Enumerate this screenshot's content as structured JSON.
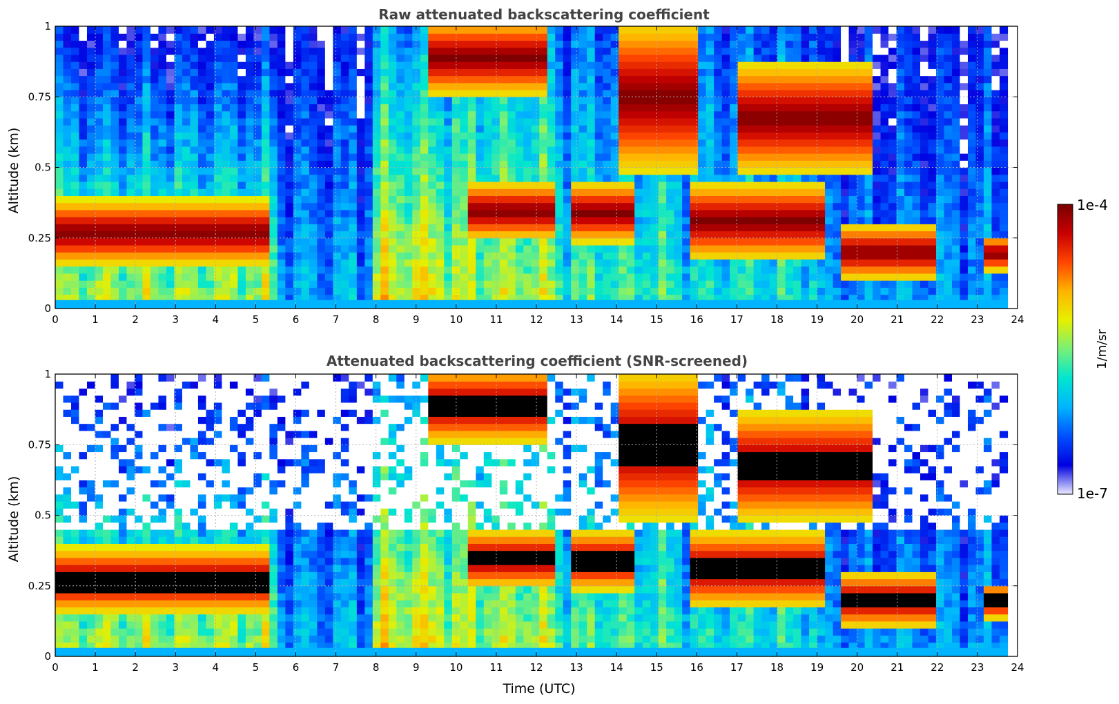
{
  "chart_data": [
    {
      "type": "heatmap",
      "title": "Raw attenuated backscattering coefficient",
      "xlabel": "",
      "ylabel": "Altitude (km)",
      "xlim": [
        0,
        24
      ],
      "ylim": [
        0,
        1
      ],
      "xticks": [
        "0",
        "1",
        "2",
        "3",
        "4",
        "5",
        "6",
        "7",
        "8",
        "9",
        "10",
        "11",
        "12",
        "13",
        "14",
        "15",
        "16",
        "17",
        "18",
        "19",
        "20",
        "21",
        "22",
        "23",
        "24"
      ],
      "yticks": [
        "0",
        "0.25",
        "0.5",
        "0.75",
        "1"
      ],
      "grid": true,
      "z_scale": "log",
      "z_range": [
        1e-07,
        0.0001
      ],
      "z_units": "1/m/sr",
      "screened": false,
      "cloud_layers": [
        {
          "t": [
            0,
            5.4
          ],
          "base_km": 0.18,
          "top_km": 0.36
        },
        {
          "t": [
            9.4,
            12.2
          ],
          "base_km": 0.78,
          "top_km": 1.0
        },
        {
          "t": [
            10.3,
            12.4
          ],
          "base_km": 0.27,
          "top_km": 0.42
        },
        {
          "t": [
            12.9,
            14.5
          ],
          "base_km": 0.26,
          "top_km": 0.42
        },
        {
          "t": [
            14.0,
            16.0
          ],
          "base_km": 0.5,
          "top_km": 1.0
        },
        {
          "t": [
            15.8,
            19.2
          ],
          "base_km": 0.2,
          "top_km": 0.42
        },
        {
          "t": [
            17.0,
            20.3
          ],
          "base_km": 0.5,
          "top_km": 0.85
        },
        {
          "t": [
            19.5,
            22.0
          ],
          "base_km": 0.13,
          "top_km": 0.27
        },
        {
          "t": [
            23.2,
            23.8
          ],
          "base_km": 0.16,
          "top_km": 0.23
        }
      ]
    },
    {
      "type": "heatmap",
      "title": "Attenuated backscattering coefficient (SNR-screened)",
      "xlabel": "Time (UTC)",
      "ylabel": "Altitude (km)",
      "xlim": [
        0,
        24
      ],
      "ylim": [
        0,
        1
      ],
      "xticks": [
        "0",
        "1",
        "2",
        "3",
        "4",
        "5",
        "6",
        "7",
        "8",
        "9",
        "10",
        "11",
        "12",
        "13",
        "14",
        "15",
        "16",
        "17",
        "18",
        "19",
        "20",
        "21",
        "22",
        "23",
        "24"
      ],
      "yticks": [
        "0",
        "0.25",
        "0.5",
        "0.75",
        "1"
      ],
      "grid": true,
      "z_scale": "log",
      "z_range": [
        1e-07,
        0.0001
      ],
      "z_units": "1/m/sr",
      "screened": true,
      "cloud_layers": [
        {
          "t": [
            0,
            5.4
          ],
          "base_km": 0.18,
          "top_km": 0.36
        },
        {
          "t": [
            9.4,
            12.2
          ],
          "base_km": 0.78,
          "top_km": 1.0
        },
        {
          "t": [
            10.3,
            12.4
          ],
          "base_km": 0.27,
          "top_km": 0.42
        },
        {
          "t": [
            12.9,
            14.5
          ],
          "base_km": 0.26,
          "top_km": 0.42
        },
        {
          "t": [
            14.0,
            16.0
          ],
          "base_km": 0.5,
          "top_km": 1.0
        },
        {
          "t": [
            15.8,
            19.2
          ],
          "base_km": 0.2,
          "top_km": 0.42
        },
        {
          "t": [
            17.0,
            20.3
          ],
          "base_km": 0.5,
          "top_km": 0.85
        },
        {
          "t": [
            19.5,
            22.0
          ],
          "base_km": 0.13,
          "top_km": 0.27
        },
        {
          "t": [
            23.2,
            23.8
          ],
          "base_km": 0.16,
          "top_km": 0.23
        }
      ]
    }
  ],
  "colorbar": {
    "min_label": "1e-7",
    "max_label": "1e-4",
    "label": "1/m/sr",
    "colormap": "jet",
    "stops": [
      "#ebebff",
      "#0000e0",
      "#0050ff",
      "#00b4ff",
      "#00e6d0",
      "#78f078",
      "#e6f000",
      "#ffb400",
      "#ff4600",
      "#c80000",
      "#780000"
    ]
  }
}
